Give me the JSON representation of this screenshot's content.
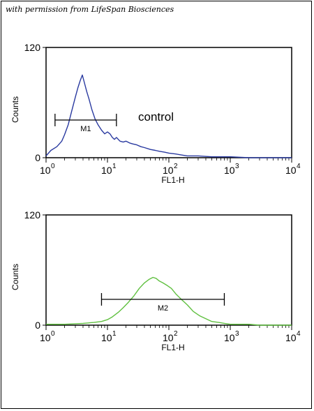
{
  "credit": "with permission from LifeSpan Biosciences",
  "chart_data": [
    {
      "type": "line",
      "color": "#2a3aa0",
      "xlabel": "FL1-H",
      "ylabel": "Counts",
      "xscale": "log",
      "xlim": [
        1,
        10000
      ],
      "ylim": [
        0,
        120
      ],
      "yticks": [
        0,
        120
      ],
      "xticks": [
        {
          "base": "10",
          "exp": "0"
        },
        {
          "base": "10",
          "exp": "1"
        },
        {
          "base": "10",
          "exp": "2"
        },
        {
          "base": "10",
          "exp": "3"
        },
        {
          "base": "10",
          "exp": "4"
        }
      ],
      "annotation": "control",
      "marker": {
        "label": "M1",
        "x_start": 1.4,
        "x_end": 14
      },
      "series": [
        {
          "x": [
            1.0,
            1.2,
            1.5,
            1.8,
            2.0,
            2.3,
            2.6,
            3.0,
            3.3,
            3.6,
            3.9,
            4.2,
            4.6,
            5.0,
            5.6,
            6.3,
            7.0,
            8.0,
            9.0,
            10,
            11,
            12,
            13,
            14,
            16,
            18,
            20,
            23,
            26,
            30,
            35,
            40,
            50,
            60,
            70,
            85,
            100,
            130,
            160,
            200,
            300,
            500,
            1000,
            2000,
            5000,
            10000
          ],
          "y": [
            2,
            8,
            12,
            18,
            25,
            36,
            50,
            66,
            76,
            84,
            90,
            82,
            72,
            64,
            52,
            42,
            36,
            30,
            26,
            28,
            26,
            22,
            20,
            22,
            18,
            17,
            18,
            16,
            15,
            14,
            12,
            11,
            9,
            8,
            7,
            6,
            5,
            4,
            3,
            2,
            2,
            1,
            1,
            0,
            0,
            0
          ]
        }
      ]
    },
    {
      "type": "line",
      "color": "#60c040",
      "xlabel": "FL1-H",
      "ylabel": "Counts",
      "xscale": "log",
      "xlim": [
        1,
        10000
      ],
      "ylim": [
        0,
        120
      ],
      "yticks": [
        0,
        120
      ],
      "xticks": [
        {
          "base": "10",
          "exp": "0"
        },
        {
          "base": "10",
          "exp": "1"
        },
        {
          "base": "10",
          "exp": "2"
        },
        {
          "base": "10",
          "exp": "3"
        },
        {
          "base": "10",
          "exp": "4"
        }
      ],
      "marker": {
        "label": "M2",
        "x_start": 8,
        "x_end": 800
      },
      "series": [
        {
          "x": [
            1,
            2,
            4,
            6,
            8,
            10,
            12,
            15,
            18,
            22,
            27,
            33,
            40,
            48,
            55,
            62,
            70,
            80,
            95,
            110,
            130,
            160,
            200,
            250,
            320,
            400,
            500,
            650,
            800,
            1000,
            1500,
            2000,
            3000,
            5000,
            10000
          ],
          "y": [
            1,
            1,
            2,
            3,
            4,
            6,
            9,
            14,
            19,
            25,
            32,
            40,
            46,
            50,
            52,
            51,
            48,
            46,
            43,
            40,
            34,
            28,
            22,
            15,
            10,
            7,
            4,
            3,
            2,
            1,
            1,
            1,
            0,
            0,
            0
          ]
        }
      ]
    }
  ]
}
